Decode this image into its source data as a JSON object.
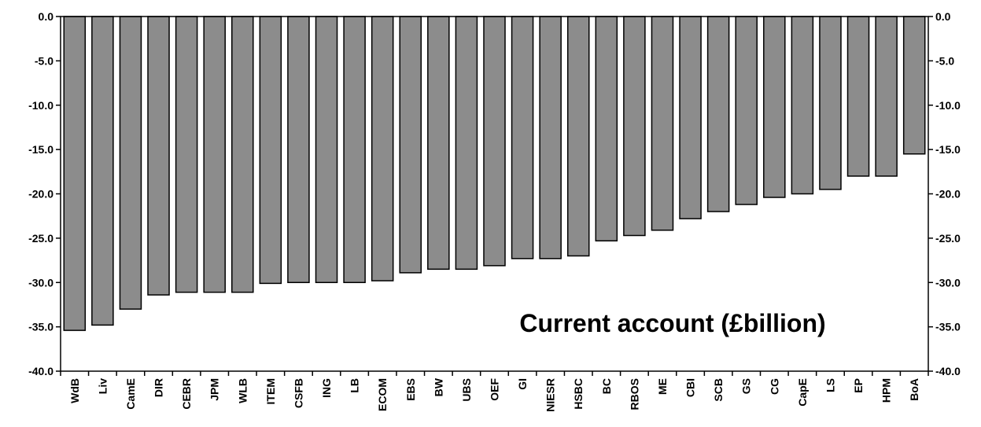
{
  "chart_data": {
    "type": "bar",
    "title": "Current account (£billion)",
    "xlabel": "",
    "ylabel": "",
    "ylim": [
      -40,
      0
    ],
    "yticks": [
      "0.0",
      "-5.0",
      "-10.0",
      "-15.0",
      "-20.0",
      "-25.0",
      "-30.0",
      "-35.0",
      "-40.0"
    ],
    "categories": [
      "WdB",
      "Liv",
      "CamE",
      "DIR",
      "CEBR",
      "JPM",
      "WLB",
      "ITEM",
      "CSFB",
      "ING",
      "LB",
      "ECOM",
      "EBS",
      "BW",
      "UBS",
      "OEF",
      "GI",
      "NIESR",
      "HSBC",
      "BC",
      "RBOS",
      "ME",
      "CBI",
      "SCB",
      "GS",
      "CG",
      "CapE",
      "LS",
      "EP",
      "HPM",
      "BoA"
    ],
    "values": [
      -35.4,
      -34.8,
      -33.0,
      -31.4,
      -31.1,
      -31.1,
      -31.1,
      -30.1,
      -30.0,
      -30.0,
      -30.0,
      -29.8,
      -28.9,
      -28.5,
      -28.5,
      -28.1,
      -27.3,
      -27.3,
      -27.0,
      -25.3,
      -24.7,
      -24.1,
      -22.8,
      -22.0,
      -21.2,
      -20.4,
      -20.0,
      -19.5,
      -18.0,
      -18.0,
      -15.5
    ],
    "bar_color": "#8c8c8c",
    "grid": false,
    "right_axis": true
  }
}
